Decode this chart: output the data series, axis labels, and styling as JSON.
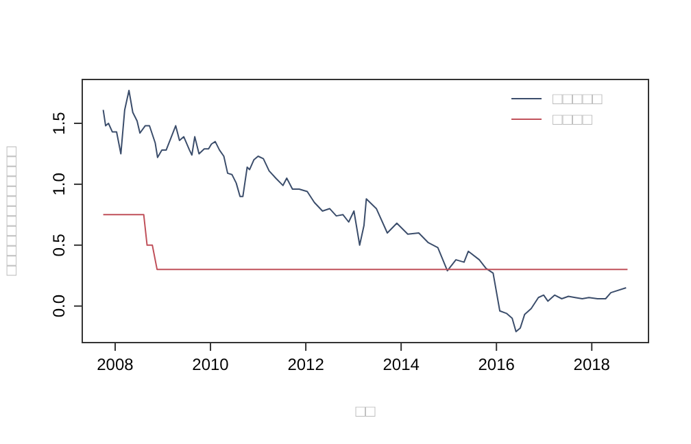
{
  "chart_data": {
    "type": "line",
    "xlabel": "□□",
    "ylabel": "□□□□□□□□□□□□□",
    "xlim": [
      2007.31,
      2019.19
    ],
    "ylim": [
      -0.3,
      1.86
    ],
    "xticks": [
      2008,
      2010,
      2012,
      2014,
      2016,
      2018
    ],
    "yticks": [
      {
        "value": 0,
        "label": "0.0"
      },
      {
        "value": 0.5,
        "label": "0.5"
      },
      {
        "value": 1,
        "label": "1.0"
      },
      {
        "value": 1.5,
        "label": "1.5"
      }
    ],
    "legend": "top right",
    "grid": false,
    "series": [
      {
        "name": "□□□□□",
        "color": "#3b4d6b",
        "x": [
          2007.75,
          2007.8,
          2007.86,
          2007.94,
          2008.03,
          2008.12,
          2008.2,
          2008.29,
          2008.37,
          2008.46,
          2008.52,
          2008.63,
          2008.72,
          2008.84,
          2008.89,
          2008.98,
          2009.07,
          2009.18,
          2009.27,
          2009.35,
          2009.44,
          2009.56,
          2009.61,
          2009.67,
          2009.76,
          2009.87,
          2009.96,
          2010.02,
          2010.1,
          2010.19,
          2010.28,
          2010.36,
          2010.45,
          2010.54,
          2010.62,
          2010.68,
          2010.77,
          2010.82,
          2010.91,
          2011.0,
          2011.11,
          2011.23,
          2011.37,
          2011.52,
          2011.6,
          2011.72,
          2011.86,
          2012.03,
          2012.18,
          2012.35,
          2012.5,
          2012.64,
          2012.78,
          2012.9,
          2013.01,
          2013.13,
          2013.22,
          2013.27,
          2013.48,
          2013.71,
          2013.91,
          2014.14,
          2014.37,
          2014.57,
          2014.77,
          2014.97,
          2015.15,
          2015.32,
          2015.41,
          2015.64,
          2015.78,
          2015.93,
          2016.07,
          2016.21,
          2016.33,
          2016.41,
          2016.5,
          2016.59,
          2016.73,
          2016.88,
          2016.99,
          2017.08,
          2017.22,
          2017.37,
          2017.51,
          2017.65,
          2017.8,
          2017.94,
          2018.12,
          2018.29,
          2018.4,
          2018.72
        ],
        "values": [
          1.61,
          1.48,
          1.5,
          1.43,
          1.43,
          1.25,
          1.61,
          1.77,
          1.59,
          1.52,
          1.42,
          1.48,
          1.48,
          1.34,
          1.22,
          1.28,
          1.28,
          1.39,
          1.48,
          1.36,
          1.39,
          1.28,
          1.24,
          1.39,
          1.25,
          1.29,
          1.29,
          1.33,
          1.35,
          1.28,
          1.23,
          1.09,
          1.08,
          1.01,
          0.9,
          0.9,
          1.14,
          1.12,
          1.2,
          1.23,
          1.21,
          1.11,
          1.05,
          0.99,
          1.05,
          0.96,
          0.96,
          0.94,
          0.85,
          0.78,
          0.8,
          0.74,
          0.75,
          0.69,
          0.78,
          0.5,
          0.66,
          0.88,
          0.8,
          0.6,
          0.68,
          0.59,
          0.6,
          0.52,
          0.48,
          0.29,
          0.38,
          0.36,
          0.45,
          0.38,
          0.31,
          0.27,
          -0.04,
          -0.06,
          -0.1,
          -0.21,
          -0.18,
          -0.07,
          -0.02,
          0.07,
          0.09,
          0.04,
          0.09,
          0.06,
          0.08,
          0.07,
          0.06,
          0.07,
          0.06,
          0.06,
          0.11,
          0.15
        ]
      },
      {
        "name": "□□□□",
        "color": "#c0505a",
        "x": [
          2007.75,
          2008.6,
          2008.67,
          2008.78,
          2008.88,
          2018.75
        ],
        "values": [
          0.75,
          0.75,
          0.5,
          0.5,
          0.3,
          0.3
        ]
      }
    ]
  }
}
